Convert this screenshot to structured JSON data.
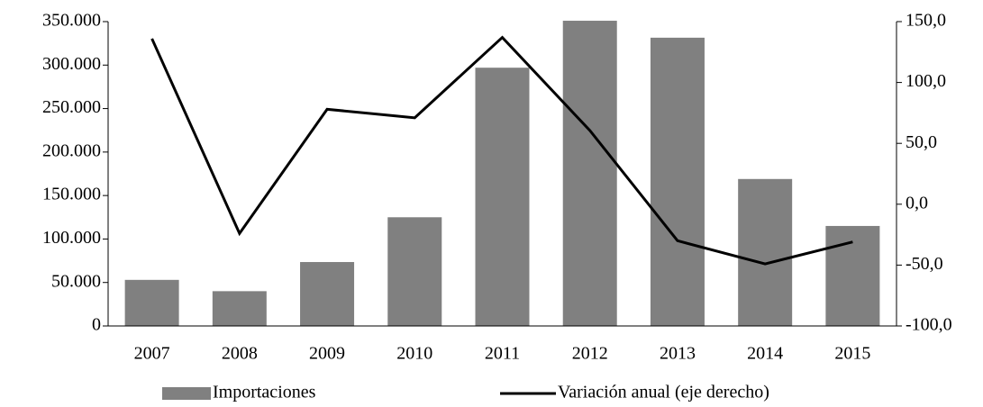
{
  "chart_data": {
    "type": "bar",
    "categories": [
      "2007",
      "2008",
      "2009",
      "2010",
      "2011",
      "2012",
      "2013",
      "2014",
      "2015"
    ],
    "series": [
      {
        "name": "Importaciones",
        "color": "#808080",
        "values": [
          53000,
          40000,
          73500,
          125000,
          297000,
          351000,
          331500,
          169000,
          115000
        ]
      },
      {
        "name": "Variación anual (eje derecho)",
        "color": "#000000",
        "type": "line",
        "axis": "y2",
        "values": [
          136,
          -24,
          78,
          71,
          137,
          60.5,
          -30,
          -49,
          -31
        ]
      }
    ],
    "ylim": [
      0,
      350000
    ],
    "yticks": [
      0,
      {
        "value": 50000,
        "label": "50.000"
      },
      {
        "value": 100000,
        "label": "100.000"
      },
      {
        "value": 150000,
        "label": "150.000"
      },
      {
        "value": 200000,
        "label": "200.000"
      },
      {
        "value": 250000,
        "label": "250.000"
      },
      {
        "value": 300000,
        "label": "300.000"
      },
      {
        "value": 350000,
        "label": "350.000"
      }
    ],
    "y2lim": [
      -100,
      150
    ],
    "y2ticks": [
      {
        "value": -100,
        "label": "-100,0"
      },
      {
        "value": -50,
        "label": "-50,0"
      },
      {
        "value": 0,
        "label": "0,0"
      },
      {
        "value": 50,
        "label": "50,0"
      },
      {
        "value": 100,
        "label": "100,0"
      },
      {
        "value": 150,
        "label": "150,0"
      }
    ],
    "grid": false,
    "legend": "bottom"
  }
}
